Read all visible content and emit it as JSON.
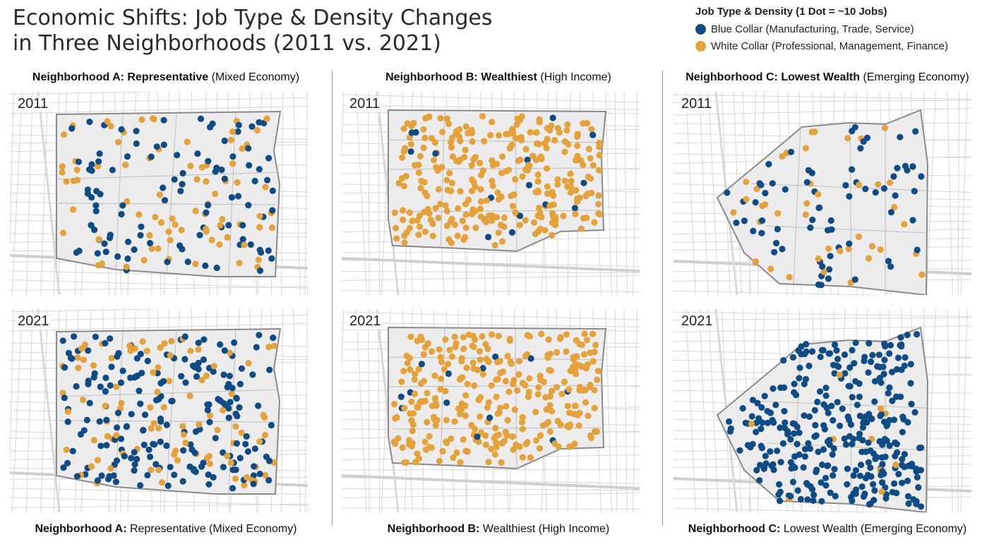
{
  "title": {
    "line1": "Economic Shifts: Job Type & Density Changes",
    "line2": "in Three Neighborhoods (2011 vs. 2021)"
  },
  "legend": {
    "title": "Job Type & Density (1 Dot = ~10 Jobs)",
    "items": [
      {
        "label": "Blue Collar (Manufacturing, Trade, Service)",
        "color": "#0f4c85"
      },
      {
        "label": "White Collar (Professional, Management, Finance)",
        "color": "#e3a23a"
      }
    ]
  },
  "colors": {
    "blue": "#0f4c85",
    "orange": "#e3a23a",
    "map_fill": "#ececec",
    "boundary": "#8a8a8a",
    "street": "#d6d6d6"
  },
  "neighborhoods": [
    {
      "id": "A",
      "top_label": {
        "name": "Neighborhood A:",
        "desc": "Representative",
        "paren": "(Mixed Economy)"
      },
      "bottom_label": {
        "name": "Neighborhood A:",
        "desc": "Representative (Mixed Economy)"
      },
      "periods": [
        {
          "year": "2011",
          "blue_share": 0.55,
          "dot_count": 180
        },
        {
          "year": "2021",
          "blue_share": 0.72,
          "dot_count": 290
        }
      ]
    },
    {
      "id": "B",
      "top_label": {
        "name": "Neighborhood B:",
        "desc": "Wealthiest",
        "paren": "(High Income)"
      },
      "bottom_label": {
        "name": "Neighborhood B:",
        "desc": "Wealthiest (High Income)"
      },
      "periods": [
        {
          "year": "2011",
          "blue_share": 0.04,
          "dot_count": 300
        },
        {
          "year": "2021",
          "blue_share": 0.05,
          "dot_count": 310
        }
      ]
    },
    {
      "id": "C",
      "top_label": {
        "name": "Neighborhood C:",
        "desc": "Lowest Wealth",
        "paren": "(Emerging Economy)"
      },
      "bottom_label": {
        "name": "Neighborhood C:",
        "desc": "Lowest Wealth (Emerging Economy)"
      },
      "periods": [
        {
          "year": "2011",
          "blue_share": 0.58,
          "dot_count": 110
        },
        {
          "year": "2021",
          "blue_share": 0.96,
          "dot_count": 330
        }
      ]
    }
  ]
}
